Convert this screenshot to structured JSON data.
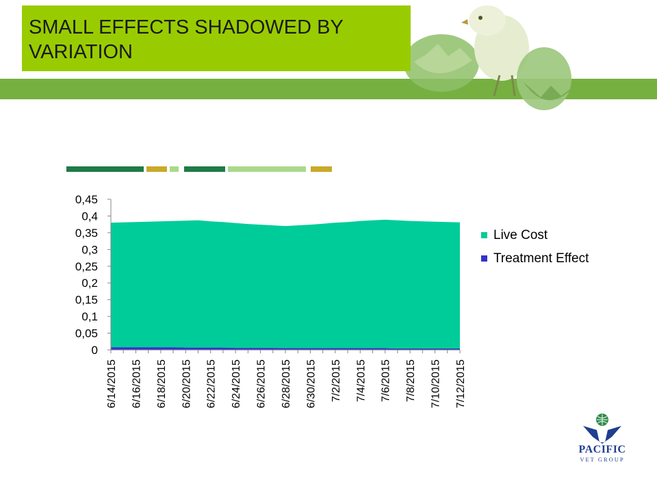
{
  "slide": {
    "title": "SMALL EFFECTS SHADOWED BY VARIATION"
  },
  "colors": {
    "title_box": "#99cc00",
    "band": "#76b041",
    "live_cost": "#00cc99",
    "treatment_effect": "#3333cc",
    "deco_dark_green": "#1e7b47",
    "deco_olive": "#c8aa2a",
    "deco_light_green": "#a9d98b",
    "logo_blue": "#1f3f8f"
  },
  "decorative_bar": [
    "dark-green",
    "olive",
    "light-green",
    "dark-green",
    "light-green",
    "olive"
  ],
  "chart_data": {
    "type": "area",
    "stacked": true,
    "x": [
      "6/14/2015",
      "6/15/2015",
      "6/16/2015",
      "6/17/2015",
      "6/18/2015",
      "6/19/2015",
      "6/20/2015",
      "6/21/2015",
      "6/22/2015",
      "6/23/2015",
      "6/24/2015",
      "6/25/2015",
      "6/26/2015",
      "6/27/2015",
      "6/28/2015",
      "6/29/2015",
      "6/30/2015",
      "7/1/2015",
      "7/2/2015",
      "7/3/2015",
      "7/4/2015",
      "7/5/2015",
      "7/6/2015",
      "7/7/2015",
      "7/8/2015",
      "7/9/2015",
      "7/10/2015",
      "7/11/2015",
      "7/12/2015"
    ],
    "tick_labels": [
      "6/14/2015",
      "6/16/2015",
      "6/18/2015",
      "6/20/2015",
      "6/22/2015",
      "6/24/2015",
      "6/26/2015",
      "6/28/2015",
      "6/30/2015",
      "7/2/2015",
      "7/4/2015",
      "7/6/2015",
      "7/8/2015",
      "7/10/2015",
      "7/12/2015"
    ],
    "series": [
      {
        "name": "Treatment Effect",
        "values": [
          0.008,
          0.008,
          0.008,
          0.008,
          0.008,
          0.008,
          0.007,
          0.007,
          0.007,
          0.007,
          0.006,
          0.006,
          0.006,
          0.006,
          0.005,
          0.005,
          0.005,
          0.005,
          0.005,
          0.005,
          0.005,
          0.005,
          0.005,
          0.004,
          0.004,
          0.004,
          0.004,
          0.004,
          0.004
        ]
      },
      {
        "name": "Live Cost",
        "values": [
          0.372,
          0.373,
          0.374,
          0.375,
          0.376,
          0.377,
          0.379,
          0.38,
          0.377,
          0.375,
          0.373,
          0.37,
          0.368,
          0.366,
          0.365,
          0.367,
          0.369,
          0.372,
          0.375,
          0.377,
          0.38,
          0.382,
          0.384,
          0.383,
          0.381,
          0.38,
          0.379,
          0.378,
          0.377
        ]
      }
    ],
    "legend": [
      "Live Cost",
      "Treatment Effect"
    ],
    "legend_position": "right",
    "y_ticks": [
      "0",
      "0,05",
      "0,1",
      "0,15",
      "0,2",
      "0,25",
      "0,3",
      "0,35",
      "0,4",
      "0,45"
    ],
    "ylim": [
      0,
      0.45
    ],
    "grid": false
  },
  "logo": {
    "name": "PACIFIC",
    "sub": "VET GROUP"
  }
}
